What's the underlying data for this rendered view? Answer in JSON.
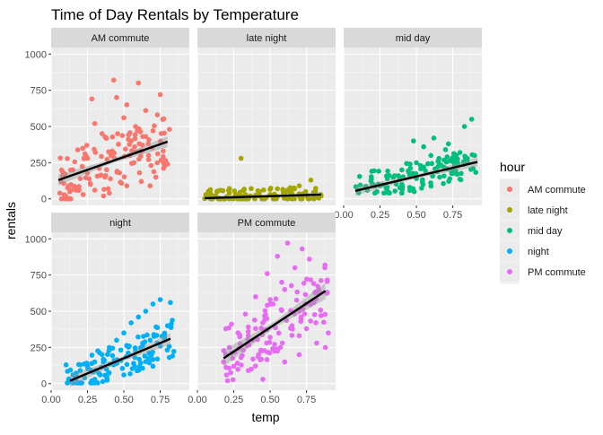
{
  "chart_data": {
    "type": "scatter",
    "title": "Time of Day Rentals by Temperature",
    "xlabel": "temp",
    "ylabel": "rentals",
    "xlim": [
      0.0,
      0.95
    ],
    "ylim": [
      -45,
      1045
    ],
    "x_ticks": [
      "0.00",
      "0.25",
      "0.50",
      "0.75"
    ],
    "x_tick_values": [
      0.0,
      0.25,
      0.5,
      0.75
    ],
    "y_ticks": [
      "0",
      "250",
      "500",
      "750",
      "1000"
    ],
    "y_tick_values": [
      0,
      250,
      500,
      750,
      1000
    ],
    "grid": true,
    "legend": {
      "title": "hour",
      "position": "right",
      "entries": [
        "AM commute",
        "late night",
        "mid day",
        "night",
        "PM commute"
      ]
    },
    "trend_line": "linear fit with confidence band, black",
    "series": [
      {
        "name": "AM commute",
        "color": "#F8766D",
        "x_range": [
          0.05,
          0.82
        ],
        "y_range": [
          0,
          840
        ],
        "fit": {
          "x0": 0.05,
          "y0": 130,
          "x1": 0.8,
          "y1": 395
        },
        "points": [
          [
            0.06,
            40
          ],
          [
            0.08,
            160
          ],
          [
            0.1,
            20
          ],
          [
            0.12,
            90
          ],
          [
            0.15,
            200
          ],
          [
            0.17,
            60
          ],
          [
            0.2,
            140
          ],
          [
            0.22,
            30
          ],
          [
            0.25,
            280
          ],
          [
            0.27,
            100
          ],
          [
            0.3,
            520
          ],
          [
            0.3,
            60
          ],
          [
            0.33,
            210
          ],
          [
            0.35,
            450
          ],
          [
            0.37,
            150
          ],
          [
            0.4,
            40
          ],
          [
            0.42,
            330
          ],
          [
            0.45,
            700
          ],
          [
            0.47,
            180
          ],
          [
            0.5,
            560
          ],
          [
            0.52,
            90
          ],
          [
            0.55,
            400
          ],
          [
            0.57,
            250
          ],
          [
            0.6,
            800
          ],
          [
            0.62,
            120
          ],
          [
            0.65,
            610
          ],
          [
            0.67,
            300
          ],
          [
            0.7,
            470
          ],
          [
            0.72,
            150
          ],
          [
            0.75,
            720
          ],
          [
            0.77,
            330
          ],
          [
            0.8,
            240
          ],
          [
            0.28,
            690
          ],
          [
            0.43,
            820
          ],
          [
            0.58,
            500
          ],
          [
            0.68,
            90
          ],
          [
            0.36,
            20
          ],
          [
            0.52,
            650
          ],
          [
            0.63,
            430
          ],
          [
            0.73,
            580
          ]
        ]
      },
      {
        "name": "late night",
        "color": "#A3A500",
        "x_range": [
          0.05,
          0.85
        ],
        "y_range": [
          0,
          280
        ],
        "fit": {
          "x0": 0.05,
          "y0": 5,
          "x1": 0.85,
          "y1": 30
        },
        "points": [
          [
            0.05,
            2
          ],
          [
            0.1,
            10
          ],
          [
            0.15,
            5
          ],
          [
            0.2,
            15
          ],
          [
            0.25,
            8
          ],
          [
            0.3,
            20
          ],
          [
            0.35,
            12
          ],
          [
            0.4,
            25
          ],
          [
            0.45,
            10
          ],
          [
            0.5,
            30
          ],
          [
            0.55,
            15
          ],
          [
            0.6,
            40
          ],
          [
            0.65,
            20
          ],
          [
            0.7,
            35
          ],
          [
            0.75,
            25
          ],
          [
            0.8,
            45
          ],
          [
            0.85,
            20
          ],
          [
            0.3,
            280
          ],
          [
            0.42,
            50
          ],
          [
            0.62,
            60
          ],
          [
            0.78,
            130
          ],
          [
            0.22,
            40
          ],
          [
            0.55,
            70
          ],
          [
            0.7,
            90
          ]
        ]
      },
      {
        "name": "mid day",
        "color": "#00BF7D",
        "x_range": [
          0.08,
          0.92
        ],
        "y_range": [
          40,
          550
        ],
        "fit": {
          "x0": 0.08,
          "y0": 55,
          "x1": 0.92,
          "y1": 255
        },
        "points": [
          [
            0.1,
            60
          ],
          [
            0.15,
            80
          ],
          [
            0.2,
            100
          ],
          [
            0.25,
            90
          ],
          [
            0.3,
            140
          ],
          [
            0.35,
            160
          ],
          [
            0.4,
            200
          ],
          [
            0.45,
            180
          ],
          [
            0.5,
            250
          ],
          [
            0.55,
            220
          ],
          [
            0.6,
            300
          ],
          [
            0.65,
            260
          ],
          [
            0.7,
            340
          ],
          [
            0.75,
            280
          ],
          [
            0.8,
            320
          ],
          [
            0.85,
            260
          ],
          [
            0.9,
            300
          ],
          [
            0.48,
            400
          ],
          [
            0.62,
            420
          ],
          [
            0.88,
            550
          ],
          [
            0.83,
            500
          ],
          [
            0.55,
            360
          ],
          [
            0.72,
            380
          ],
          [
            0.4,
            100
          ],
          [
            0.3,
            80
          ],
          [
            0.66,
            150
          ],
          [
            0.78,
            170
          ],
          [
            0.5,
            140
          ]
        ]
      },
      {
        "name": "night",
        "color": "#00B0F6",
        "x_range": [
          0.1,
          0.85
        ],
        "y_range": [
          5,
          580
        ],
        "fit": {
          "x0": 0.13,
          "y0": 20,
          "x1": 0.82,
          "y1": 310
        },
        "points": [
          [
            0.12,
            30
          ],
          [
            0.15,
            60
          ],
          [
            0.18,
            10
          ],
          [
            0.2,
            90
          ],
          [
            0.23,
            40
          ],
          [
            0.25,
            120
          ],
          [
            0.28,
            20
          ],
          [
            0.3,
            150
          ],
          [
            0.33,
            70
          ],
          [
            0.35,
            200
          ],
          [
            0.38,
            100
          ],
          [
            0.4,
            250
          ],
          [
            0.43,
            130
          ],
          [
            0.45,
            300
          ],
          [
            0.48,
            160
          ],
          [
            0.5,
            350
          ],
          [
            0.53,
            190
          ],
          [
            0.55,
            420
          ],
          [
            0.58,
            230
          ],
          [
            0.6,
            460
          ],
          [
            0.63,
            260
          ],
          [
            0.65,
            500
          ],
          [
            0.68,
            300
          ],
          [
            0.7,
            550
          ],
          [
            0.73,
            280
          ],
          [
            0.75,
            580
          ],
          [
            0.78,
            320
          ],
          [
            0.8,
            400
          ],
          [
            0.82,
            560
          ],
          [
            0.3,
            30
          ],
          [
            0.5,
            60
          ],
          [
            0.7,
            120
          ]
        ]
      },
      {
        "name": "PM commute",
        "color": "#E76BF3",
        "x_range": [
          0.18,
          0.9
        ],
        "y_range": [
          20,
          980
        ],
        "fit": {
          "x0": 0.18,
          "y0": 175,
          "x1": 0.88,
          "y1": 640
        },
        "points": [
          [
            0.18,
            150
          ],
          [
            0.2,
            60
          ],
          [
            0.22,
            250
          ],
          [
            0.25,
            120
          ],
          [
            0.28,
            350
          ],
          [
            0.3,
            180
          ],
          [
            0.33,
            480
          ],
          [
            0.35,
            90
          ],
          [
            0.38,
            300
          ],
          [
            0.4,
            600
          ],
          [
            0.42,
            200
          ],
          [
            0.45,
            420
          ],
          [
            0.48,
            760
          ],
          [
            0.5,
            320
          ],
          [
            0.52,
            550
          ],
          [
            0.55,
            880
          ],
          [
            0.57,
            250
          ],
          [
            0.6,
            650
          ],
          [
            0.62,
            970
          ],
          [
            0.65,
            400
          ],
          [
            0.67,
            800
          ],
          [
            0.7,
            500
          ],
          [
            0.72,
            930
          ],
          [
            0.75,
            380
          ],
          [
            0.77,
            860
          ],
          [
            0.8,
            560
          ],
          [
            0.82,
            280
          ],
          [
            0.85,
            470
          ],
          [
            0.88,
            250
          ],
          [
            0.9,
            350
          ],
          [
            0.45,
            30
          ],
          [
            0.6,
            150
          ],
          [
            0.7,
            200
          ],
          [
            0.4,
            380
          ],
          [
            0.58,
            700
          ]
        ]
      }
    ]
  }
}
